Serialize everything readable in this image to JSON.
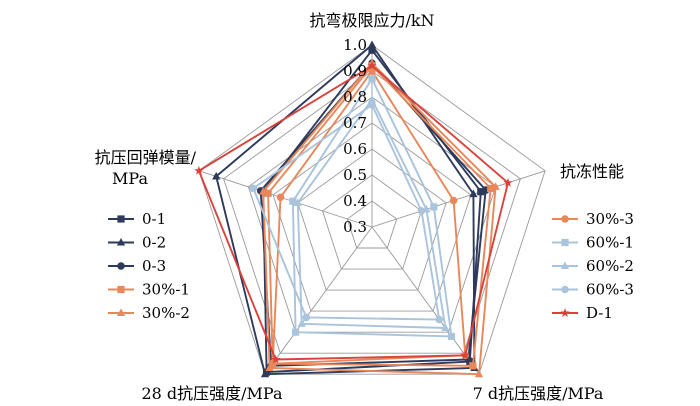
{
  "chart_data": {
    "type": "radar",
    "axes": [
      "抗弯极限应力/kN",
      "抗冻性能",
      "7 d抗压强度/MPa",
      "28 d抗压强度/MPa",
      "抗压回弹模量/MPa"
    ],
    "axis_label_lines": [
      [
        "抗弯极限应力/kN"
      ],
      [
        "抗冻性能"
      ],
      [
        "7 d抗压强度/MPa"
      ],
      [
        "28 d抗压强度/MPa"
      ],
      [
        "抗压回弹模量/",
        "MPa"
      ]
    ],
    "radial_range": [
      0.3,
      1.0
    ],
    "ticks": [
      "0.3",
      "0.4",
      "0.5",
      "0.6",
      "0.7",
      "0.8",
      "0.9",
      "1.0"
    ],
    "grid": true,
    "legend_left": [
      "0-1",
      "0-2",
      "0-3",
      "30%-1",
      "30%-2"
    ],
    "legend_right": [
      "30%-3",
      "60%-1",
      "60%-2",
      "60%-3",
      "D-1"
    ],
    "series": [
      {
        "name": "0-1",
        "color": "#2e3a5c",
        "marker": "square",
        "values": [
          0.98,
          0.74,
          0.94,
          0.99,
          0.74
        ]
      },
      {
        "name": "0-2",
        "color": "#2e3a5c",
        "marker": "triangle",
        "values": [
          1.0,
          0.71,
          0.97,
          1.0,
          0.93
        ]
      },
      {
        "name": "0-3",
        "color": "#2e3a5c",
        "marker": "circle",
        "values": [
          0.93,
          0.76,
          0.93,
          0.96,
          0.75
        ]
      },
      {
        "name": "30%-1",
        "color": "#e8875a",
        "marker": "square",
        "values": [
          0.92,
          0.78,
          0.96,
          0.95,
          0.72
        ]
      },
      {
        "name": "30%-2",
        "color": "#e8875a",
        "marker": "triangle",
        "values": [
          0.93,
          0.8,
          1.0,
          0.97,
          0.74
        ]
      },
      {
        "name": "30%-3",
        "color": "#e8875a",
        "marker": "circle",
        "values": [
          0.9,
          0.63,
          0.91,
          0.95,
          0.67
        ]
      },
      {
        "name": "60%-1",
        "color": "#a9c4dc",
        "marker": "square",
        "values": [
          0.87,
          0.55,
          0.82,
          0.8,
          0.62
        ]
      },
      {
        "name": "60%-2",
        "color": "#a9c4dc",
        "marker": "triangle",
        "values": [
          0.79,
          0.52,
          0.78,
          0.76,
          0.6
        ]
      },
      {
        "name": "60%-3",
        "color": "#a9c4dc",
        "marker": "circle",
        "values": [
          0.77,
          0.5,
          0.74,
          0.73,
          0.78
        ]
      },
      {
        "name": "D-1",
        "color": "#d9433b",
        "marker": "star",
        "values": [
          0.92,
          0.85,
          0.91,
          0.93,
          1.0
        ]
      }
    ]
  }
}
